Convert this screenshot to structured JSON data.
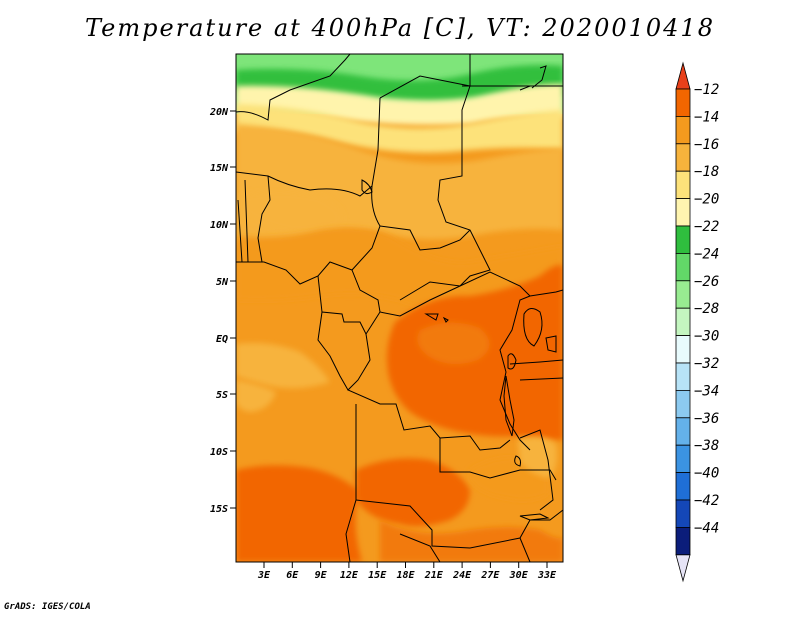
{
  "title": "Temperature at 400hPa [C], VT: 2020010418",
  "credit": "GrADS: IGES/COLA",
  "latitude_labels": [
    "20N",
    "15N",
    "10N",
    "5N",
    "EQ",
    "5S",
    "10S",
    "15S"
  ],
  "longitude_labels": [
    "3E",
    "6E",
    "9E",
    "12E",
    "15E",
    "18E",
    "21E",
    "24E",
    "27E",
    "30E",
    "33E"
  ],
  "colorbar": {
    "levels": [
      "-12",
      "-14",
      "-16",
      "-18",
      "-20",
      "-22",
      "-24",
      "-26",
      "-28",
      "-30",
      "-32",
      "-34",
      "-36",
      "-38",
      "-40",
      "-42",
      "-44"
    ],
    "colors": [
      "#e8401a",
      "#f26600",
      "#f49a1e",
      "#f7b33c",
      "#fde27a",
      "#fff5b0",
      "#2fbe3e",
      "#62d868",
      "#98ec91",
      "#c4f6c0",
      "#e8fbfd",
      "#b7e3f7",
      "#8ccaf0",
      "#64b1ea",
      "#3b93e2",
      "#1f6fd6",
      "#1447b7",
      "#0b1d7a",
      "#e6e4f6"
    ]
  },
  "field_colors": {
    "green_dark": "#30bf3c",
    "green_light": "#7ee57a",
    "yellow_pale": "#fff4ac",
    "yellow": "#fde27a",
    "orange_light": "#f7b33c",
    "orange": "#f49a1e",
    "orange_deep": "#f27a0a",
    "red_orange": "#f26600"
  }
}
